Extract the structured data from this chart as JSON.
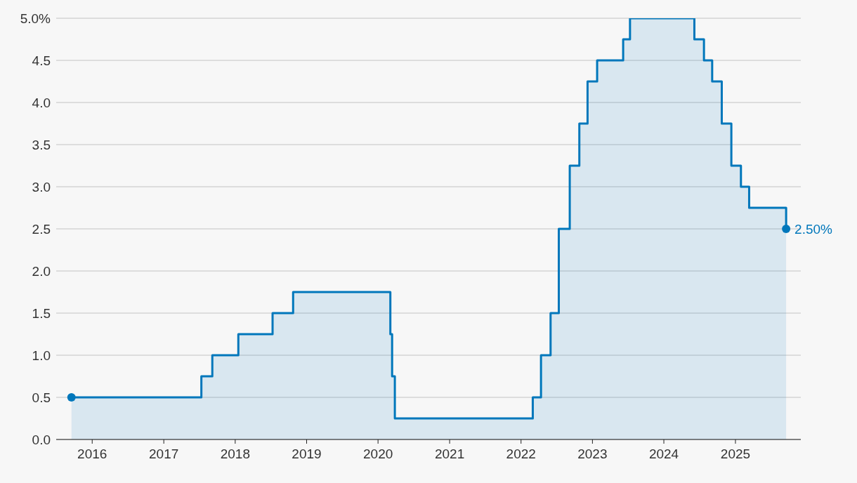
{
  "chart_data": {
    "type": "area",
    "x": [
      "2015-09-17",
      "2017-07-12",
      "2017-07-12",
      "2017-09-06",
      "2017-09-06",
      "2018-01-17",
      "2018-01-17",
      "2018-07-11",
      "2018-07-11",
      "2018-10-24",
      "2018-10-24",
      "2020-03-04",
      "2020-03-04",
      "2020-03-13",
      "2020-03-13",
      "2020-03-27",
      "2020-03-27",
      "2022-03-02",
      "2022-03-02",
      "2022-04-13",
      "2022-04-13",
      "2022-06-01",
      "2022-06-01",
      "2022-07-13",
      "2022-07-13",
      "2022-09-07",
      "2022-09-07",
      "2022-10-26",
      "2022-10-26",
      "2022-12-07",
      "2022-12-07",
      "2023-01-25",
      "2023-01-25",
      "2023-06-07",
      "2023-06-07",
      "2023-07-12",
      "2023-07-12",
      "2024-06-05",
      "2024-06-05",
      "2024-07-24",
      "2024-07-24",
      "2024-09-04",
      "2024-09-04",
      "2024-10-23",
      "2024-10-23",
      "2024-12-11",
      "2024-12-11",
      "2025-01-29",
      "2025-01-29",
      "2025-03-12",
      "2025-03-12",
      "2025-09-17",
      "2025-09-17"
    ],
    "series": [
      {
        "color": "#0077bb",
        "values": [
          0.5,
          0.5,
          0.75,
          0.75,
          1.0,
          1.0,
          1.25,
          1.25,
          1.5,
          1.5,
          1.75,
          1.75,
          1.25,
          1.25,
          0.75,
          0.75,
          0.25,
          0.25,
          0.5,
          0.5,
          1.0,
          1.0,
          1.5,
          1.5,
          2.5,
          2.5,
          3.25,
          3.25,
          3.75,
          3.75,
          4.25,
          4.25,
          4.5,
          4.5,
          4.75,
          4.75,
          5.0,
          5.0,
          4.75,
          4.75,
          4.5,
          4.5,
          4.25,
          4.25,
          3.75,
          3.75,
          3.25,
          3.25,
          3.0,
          3.0,
          2.75,
          2.75,
          2.5
        ]
      }
    ],
    "xlim": [
      "2015-07-01",
      "2025-12-01"
    ],
    "xticks": [
      "2016",
      "2017",
      "2018",
      "2019",
      "2020",
      "2021",
      "2022",
      "2023",
      "2024",
      "2025"
    ],
    "ylim": [
      0,
      5
    ],
    "yticks": [
      {
        "value": 0,
        "label": "0.0"
      },
      {
        "value": 0.5,
        "label": "0.5"
      },
      {
        "value": 1,
        "label": "1.0"
      },
      {
        "value": 1.5,
        "label": "1.5"
      },
      {
        "value": 2,
        "label": "2.0"
      },
      {
        "value": 2.5,
        "label": "2.5"
      },
      {
        "value": 3,
        "label": "3.0"
      },
      {
        "value": 3.5,
        "label": "3.5"
      },
      {
        "value": 4,
        "label": "4.0"
      },
      {
        "value": 4.5,
        "label": "4.5"
      },
      {
        "value": 5,
        "label": "5.0%"
      }
    ],
    "grid": "y",
    "annotations": [
      {
        "text": "2.50%",
        "x": "2025-09-17",
        "y": 2.5
      }
    ]
  }
}
